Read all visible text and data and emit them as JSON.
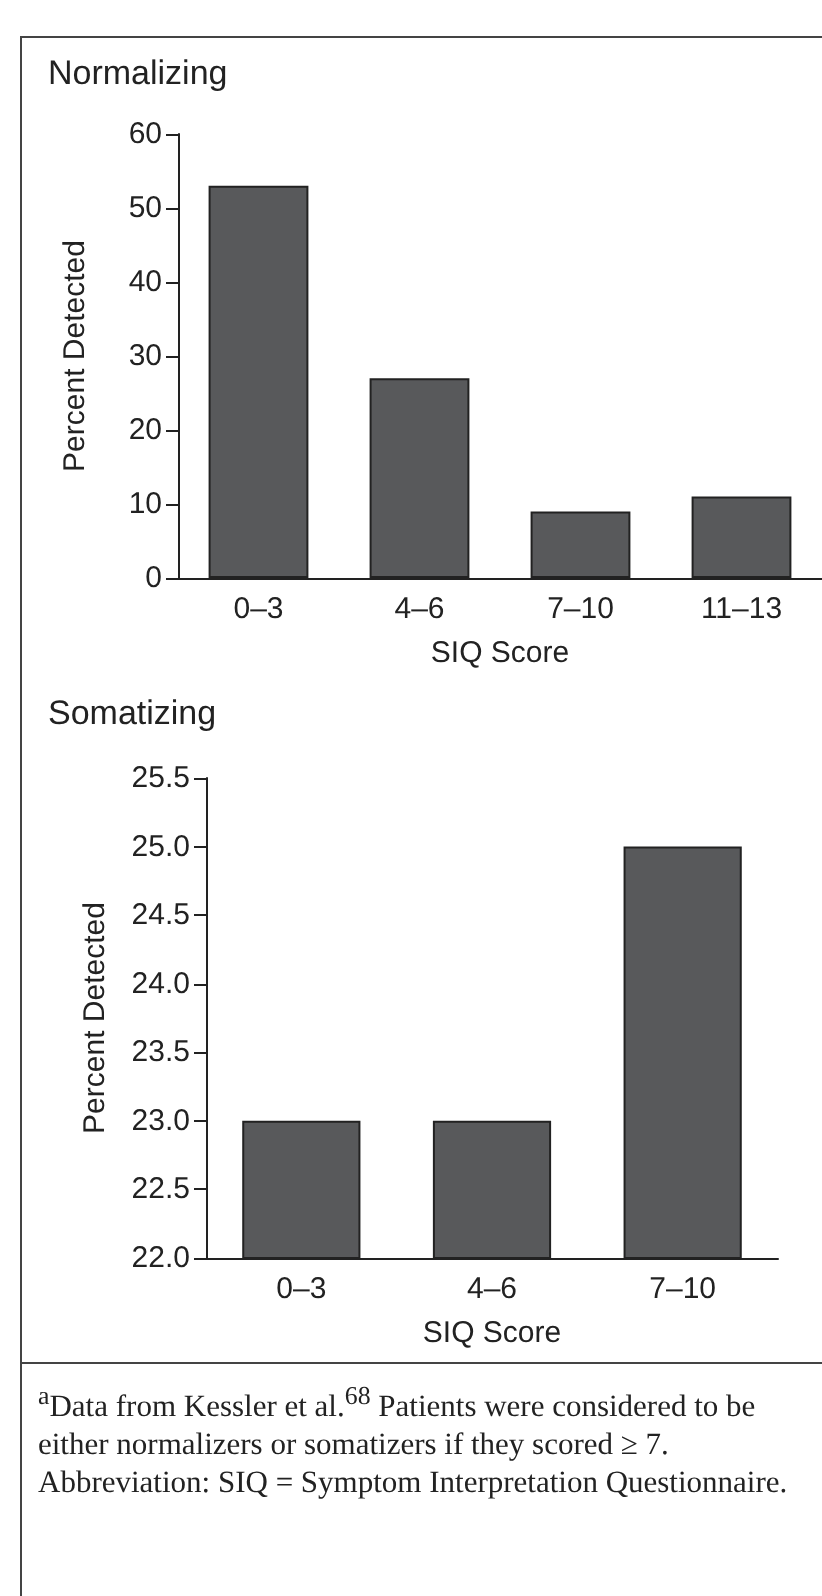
{
  "chart_data": [
    {
      "type": "bar",
      "title": "Normalizing",
      "xlabel": "SIQ Score",
      "ylabel": "Percent Detected",
      "categories": [
        "0–3",
        "4–6",
        "7–10",
        "11–13"
      ],
      "values": [
        53,
        27,
        9,
        11
      ],
      "color": "#58595b",
      "ylim": [
        0,
        60
      ],
      "yticks": [
        0,
        10,
        20,
        30,
        40,
        50,
        60
      ],
      "grid": false
    },
    {
      "type": "bar",
      "title": "Somatizing",
      "xlabel": "SIQ Score",
      "ylabel": "Percent Detected",
      "categories": [
        "0–3",
        "4–6",
        "7–10"
      ],
      "values": [
        23.0,
        23.0,
        25.0
      ],
      "color": "#58595b",
      "ylim": [
        22.0,
        25.5
      ],
      "yticks": [
        {
          "value": 22,
          "label": "22.0"
        },
        {
          "value": 22.5,
          "label": "22.5"
        },
        {
          "value": 23,
          "label": "23.0"
        },
        {
          "value": 23.5,
          "label": "23.5"
        },
        {
          "value": 24,
          "label": "24.0"
        },
        {
          "value": 24.5,
          "label": "24.5"
        },
        {
          "value": 25,
          "label": "25.0"
        },
        {
          "value": 25.5,
          "label": "25.5"
        }
      ],
      "grid": false,
      "annotations": [
        "$^{a}$Data from Kessler et al.$^{68}$ Patients were considered to be either normalizers or somatizers if they scored ≥ 7.",
        "Abbreviation: SIQ = Symptom Interpretation Questionnaire."
      ]
    }
  ]
}
